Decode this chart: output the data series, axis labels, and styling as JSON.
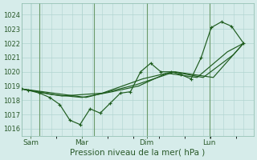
{
  "background_color": "#d6ecea",
  "plot_bg_color": "#d6ecea",
  "grid_color": "#b0d4d0",
  "line_color": "#1e5c1e",
  "vline_color": "#6a9a6a",
  "spine_color": "#8abaaa",
  "tick_color": "#2a5a2a",
  "xlabel": "Pression niveau de la mer( hPa )",
  "xlabel_fontsize": 7.5,
  "ylim": [
    1015.5,
    1024.8
  ],
  "yticks": [
    1016,
    1017,
    1018,
    1019,
    1020,
    1021,
    1022,
    1023,
    1024
  ],
  "ylabel_fontsize": 6,
  "xlim": [
    0,
    11.5
  ],
  "xtick_positions": [
    0.45,
    3.0,
    6.2,
    9.3
  ],
  "xtick_labels": [
    "Sam",
    "Mar",
    "Dim",
    "Lun"
  ],
  "vline_positions": [
    0.9,
    3.6,
    6.2,
    9.3
  ],
  "series_main": {
    "x": [
      0.0,
      0.35,
      0.9,
      1.4,
      1.9,
      2.4,
      2.9,
      3.4,
      3.9,
      4.4,
      4.9,
      5.4,
      5.9,
      6.4,
      6.9,
      7.4,
      7.9,
      8.4,
      8.9,
      9.4,
      9.9,
      10.4,
      11.0
    ],
    "y": [
      1018.8,
      1018.7,
      1018.5,
      1018.2,
      1017.7,
      1016.6,
      1016.3,
      1017.4,
      1017.1,
      1017.8,
      1018.5,
      1018.6,
      1020.0,
      1020.6,
      1020.0,
      1020.0,
      1019.8,
      1019.5,
      1021.0,
      1023.1,
      1023.5,
      1023.2,
      1022.0
    ]
  },
  "series2": {
    "x": [
      0.0,
      1.5,
      3.0,
      4.5,
      5.8,
      7.2,
      8.7,
      10.2,
      11.0
    ],
    "y": [
      1018.8,
      1018.4,
      1018.2,
      1018.6,
      1019.0,
      1019.9,
      1019.6,
      1021.4,
      1022.0
    ]
  },
  "series3": {
    "x": [
      0.0,
      2.0,
      4.0,
      6.0,
      7.5,
      9.0,
      10.5,
      11.0
    ],
    "y": [
      1018.8,
      1018.3,
      1018.5,
      1019.5,
      1020.0,
      1019.6,
      1021.2,
      1022.0
    ]
  },
  "series4": {
    "x": [
      0.0,
      3.2,
      5.7,
      7.6,
      9.5,
      11.0
    ],
    "y": [
      1018.8,
      1018.2,
      1019.1,
      1020.0,
      1019.6,
      1022.0
    ]
  }
}
